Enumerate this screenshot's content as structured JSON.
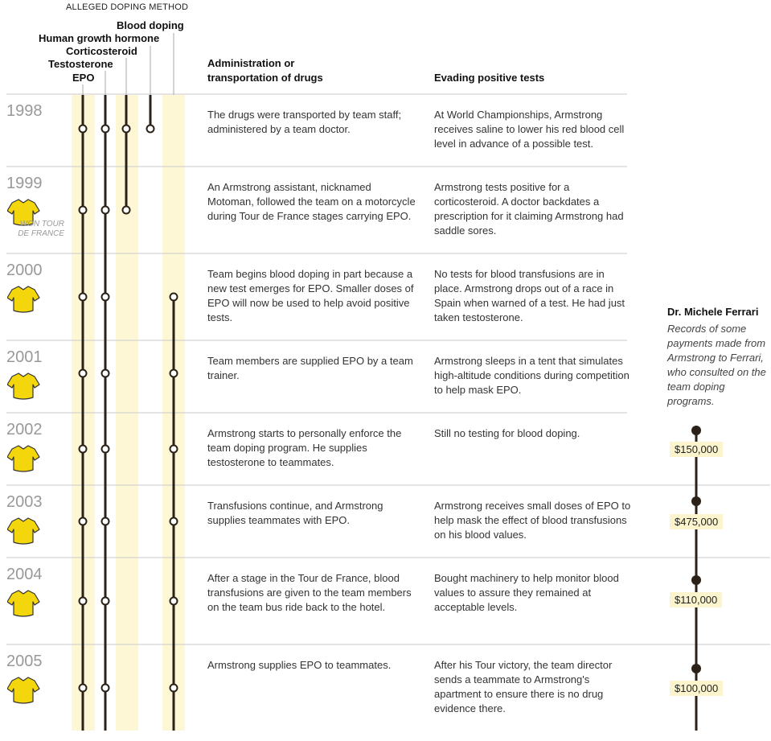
{
  "header": {
    "group_label": "ALLEGED DOPING METHOD",
    "methods": [
      "Blood doping",
      "Human growth hormone",
      "Corticosteroid",
      "Testosterone",
      "EPO"
    ],
    "col_admin": "Administration or transportation of drugs",
    "col_evade": "Evading positive tests"
  },
  "rows": [
    {
      "year": "1998",
      "won": "",
      "admin": "The drugs were transported by team staff; administered by a team doctor.",
      "evade": "At World Championships, Armstrong receives saline to lower his red blood cell level in advance of a possible test."
    },
    {
      "year": "1999",
      "won": "WON TOUR DE FRANCE",
      "admin": "An Armstrong assistant, nicknamed Motoman, followed the team on a motorcycle during Tour de France stages carrying EPO.",
      "evade": "Armstrong tests positive for a corticosteroid. A doctor backdates a prescription for it claiming Armstrong had saddle sores."
    },
    {
      "year": "2000",
      "won": "",
      "admin": "Team begins blood doping in part because a new test emerges for EPO. Smaller doses of EPO will now be used to help avoid positive tests.",
      "evade": "No tests for blood transfusions are in place. Armstrong drops out of a race in Spain when warned of a test. He had just taken testosterone."
    },
    {
      "year": "2001",
      "won": "",
      "admin": "Team members are supplied EPO by a team trainer.",
      "evade": "Armstrong sleeps in a tent that simulates high-altitude conditions during competition to help mask EPO."
    },
    {
      "year": "2002",
      "won": "",
      "admin": "Armstrong starts to personally enforce the team doping program. He supplies testosterone to teammates.",
      "evade": "Still no testing for blood doping."
    },
    {
      "year": "2003",
      "won": "",
      "admin": "Transfusions continue, and Armstrong supplies teammates with EPO.",
      "evade": "Armstrong receives small doses of EPO to help mask the effect of blood transfusions on his blood values."
    },
    {
      "year": "2004",
      "won": "",
      "admin": "After a stage in the Tour de France, blood transfusions are given to the team members on the team bus ride back to the hotel.",
      "evade": "Bought machinery to help monitor blood values to assure they remained at acceptable levels."
    },
    {
      "year": "2005",
      "won": "",
      "admin": "Armstrong supplies EPO to teammates.",
      "evade": "After his Tour victory, the team director sends a teammate to Armstrong's apartment to ensure there is no drug evidence there."
    }
  ],
  "ferrari": {
    "title": "Dr. Michele Ferrari",
    "subtitle": "Records of some payments made from Armstrong to Ferrari, who consulted on the team doping programs.",
    "payments": [
      {
        "year": "2002",
        "amount": "$150,000"
      },
      {
        "year": "2003",
        "amount": "$475,000"
      },
      {
        "year": "2004",
        "amount": "$110,000"
      },
      {
        "year": "2005",
        "amount": "$100,000"
      }
    ]
  },
  "colors": {
    "highlight": "#fdf7d6",
    "line": "#2b2118",
    "jersey": "#f3d60c",
    "divider": "#c8c8c8"
  }
}
